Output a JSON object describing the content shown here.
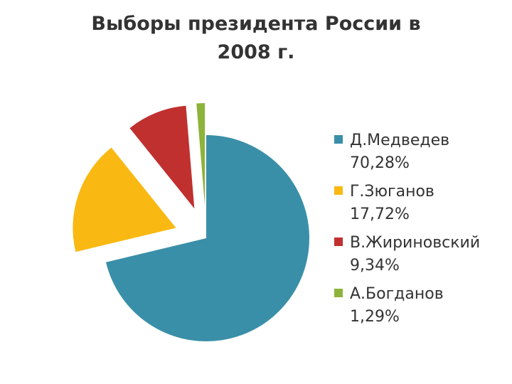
{
  "chart_data": {
    "type": "pie",
    "title": "Выборы президента России в 2008 г.",
    "categories": [
      "Д.Медведев",
      "Г.Зюганов",
      "В.Жириновский",
      "А.Богданов"
    ],
    "values": [
      70.28,
      17.72,
      9.34,
      1.29
    ],
    "value_labels": [
      "70,28%",
      "17,72%",
      "9,34%",
      "1,29%"
    ],
    "colors": [
      "#3a8fa8",
      "#f9b912",
      "#c0302f",
      "#8db33a"
    ],
    "legend": "right"
  }
}
